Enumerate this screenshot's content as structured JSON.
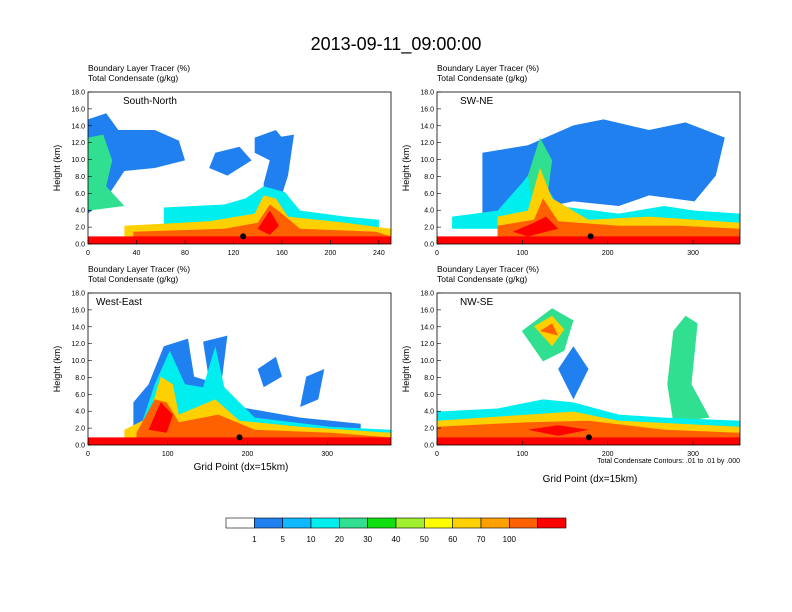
{
  "title": "2013-09-11_09:00:00",
  "panel_labels": {
    "line1": "Boundary Layer Tracer   (%)",
    "line2": "Total Condensate   (g/kg)"
  },
  "y_axis": {
    "label": "Height (km)",
    "ticks": [
      "0.0",
      "2.0",
      "4.0",
      "6.0",
      "8.0",
      "10.0",
      "12.0",
      "14.0",
      "16.0",
      "18.0"
    ]
  },
  "x_axis_label": "Grid Point (dx=15km)",
  "contour_note": "Total Condensate Contours: .01 to .01 by .000",
  "colorbar": {
    "colors": [
      "#ffffff",
      "#2080f0",
      "#10b8ff",
      "#00eeee",
      "#30e090",
      "#10e010",
      "#a0f030",
      "#ffff00",
      "#ffd000",
      "#ffa000",
      "#ff6000",
      "#ff0000"
    ],
    "labels": [
      "1",
      "5",
      "10",
      "20",
      "30",
      "40",
      "50",
      "60",
      "70",
      "100"
    ]
  },
  "chart_data": [
    {
      "type": "heatmap",
      "name": "South-North",
      "xlim": [
        0,
        250
      ],
      "ylim": [
        0,
        18
      ],
      "xticks": [
        "0",
        "40",
        "80",
        "120",
        "160",
        "200",
        "240"
      ],
      "xtick_values": [
        0,
        40,
        80,
        120,
        160,
        200,
        240
      ],
      "marker_x": 128
    },
    {
      "type": "heatmap",
      "name": "SW-NE",
      "xlim": [
        0,
        355
      ],
      "ylim": [
        0,
        18
      ],
      "xticks": [
        "0",
        "100",
        "200",
        "300"
      ],
      "xtick_values": [
        0,
        100,
        200,
        300
      ],
      "marker_x": 180
    },
    {
      "type": "heatmap",
      "name": "West-East",
      "xlim": [
        0,
        380
      ],
      "ylim": [
        0,
        18
      ],
      "xticks": [
        "0",
        "100",
        "200",
        "300"
      ],
      "xtick_values": [
        0,
        100,
        200,
        300
      ],
      "marker_x": 190
    },
    {
      "type": "heatmap",
      "name": "NW-SE",
      "xlim": [
        0,
        355
      ],
      "ylim": [
        0,
        18
      ],
      "xticks": [
        "0",
        "100",
        "200",
        "300"
      ],
      "xtick_values": [
        0,
        100,
        200,
        300
      ],
      "marker_x": 178
    }
  ]
}
